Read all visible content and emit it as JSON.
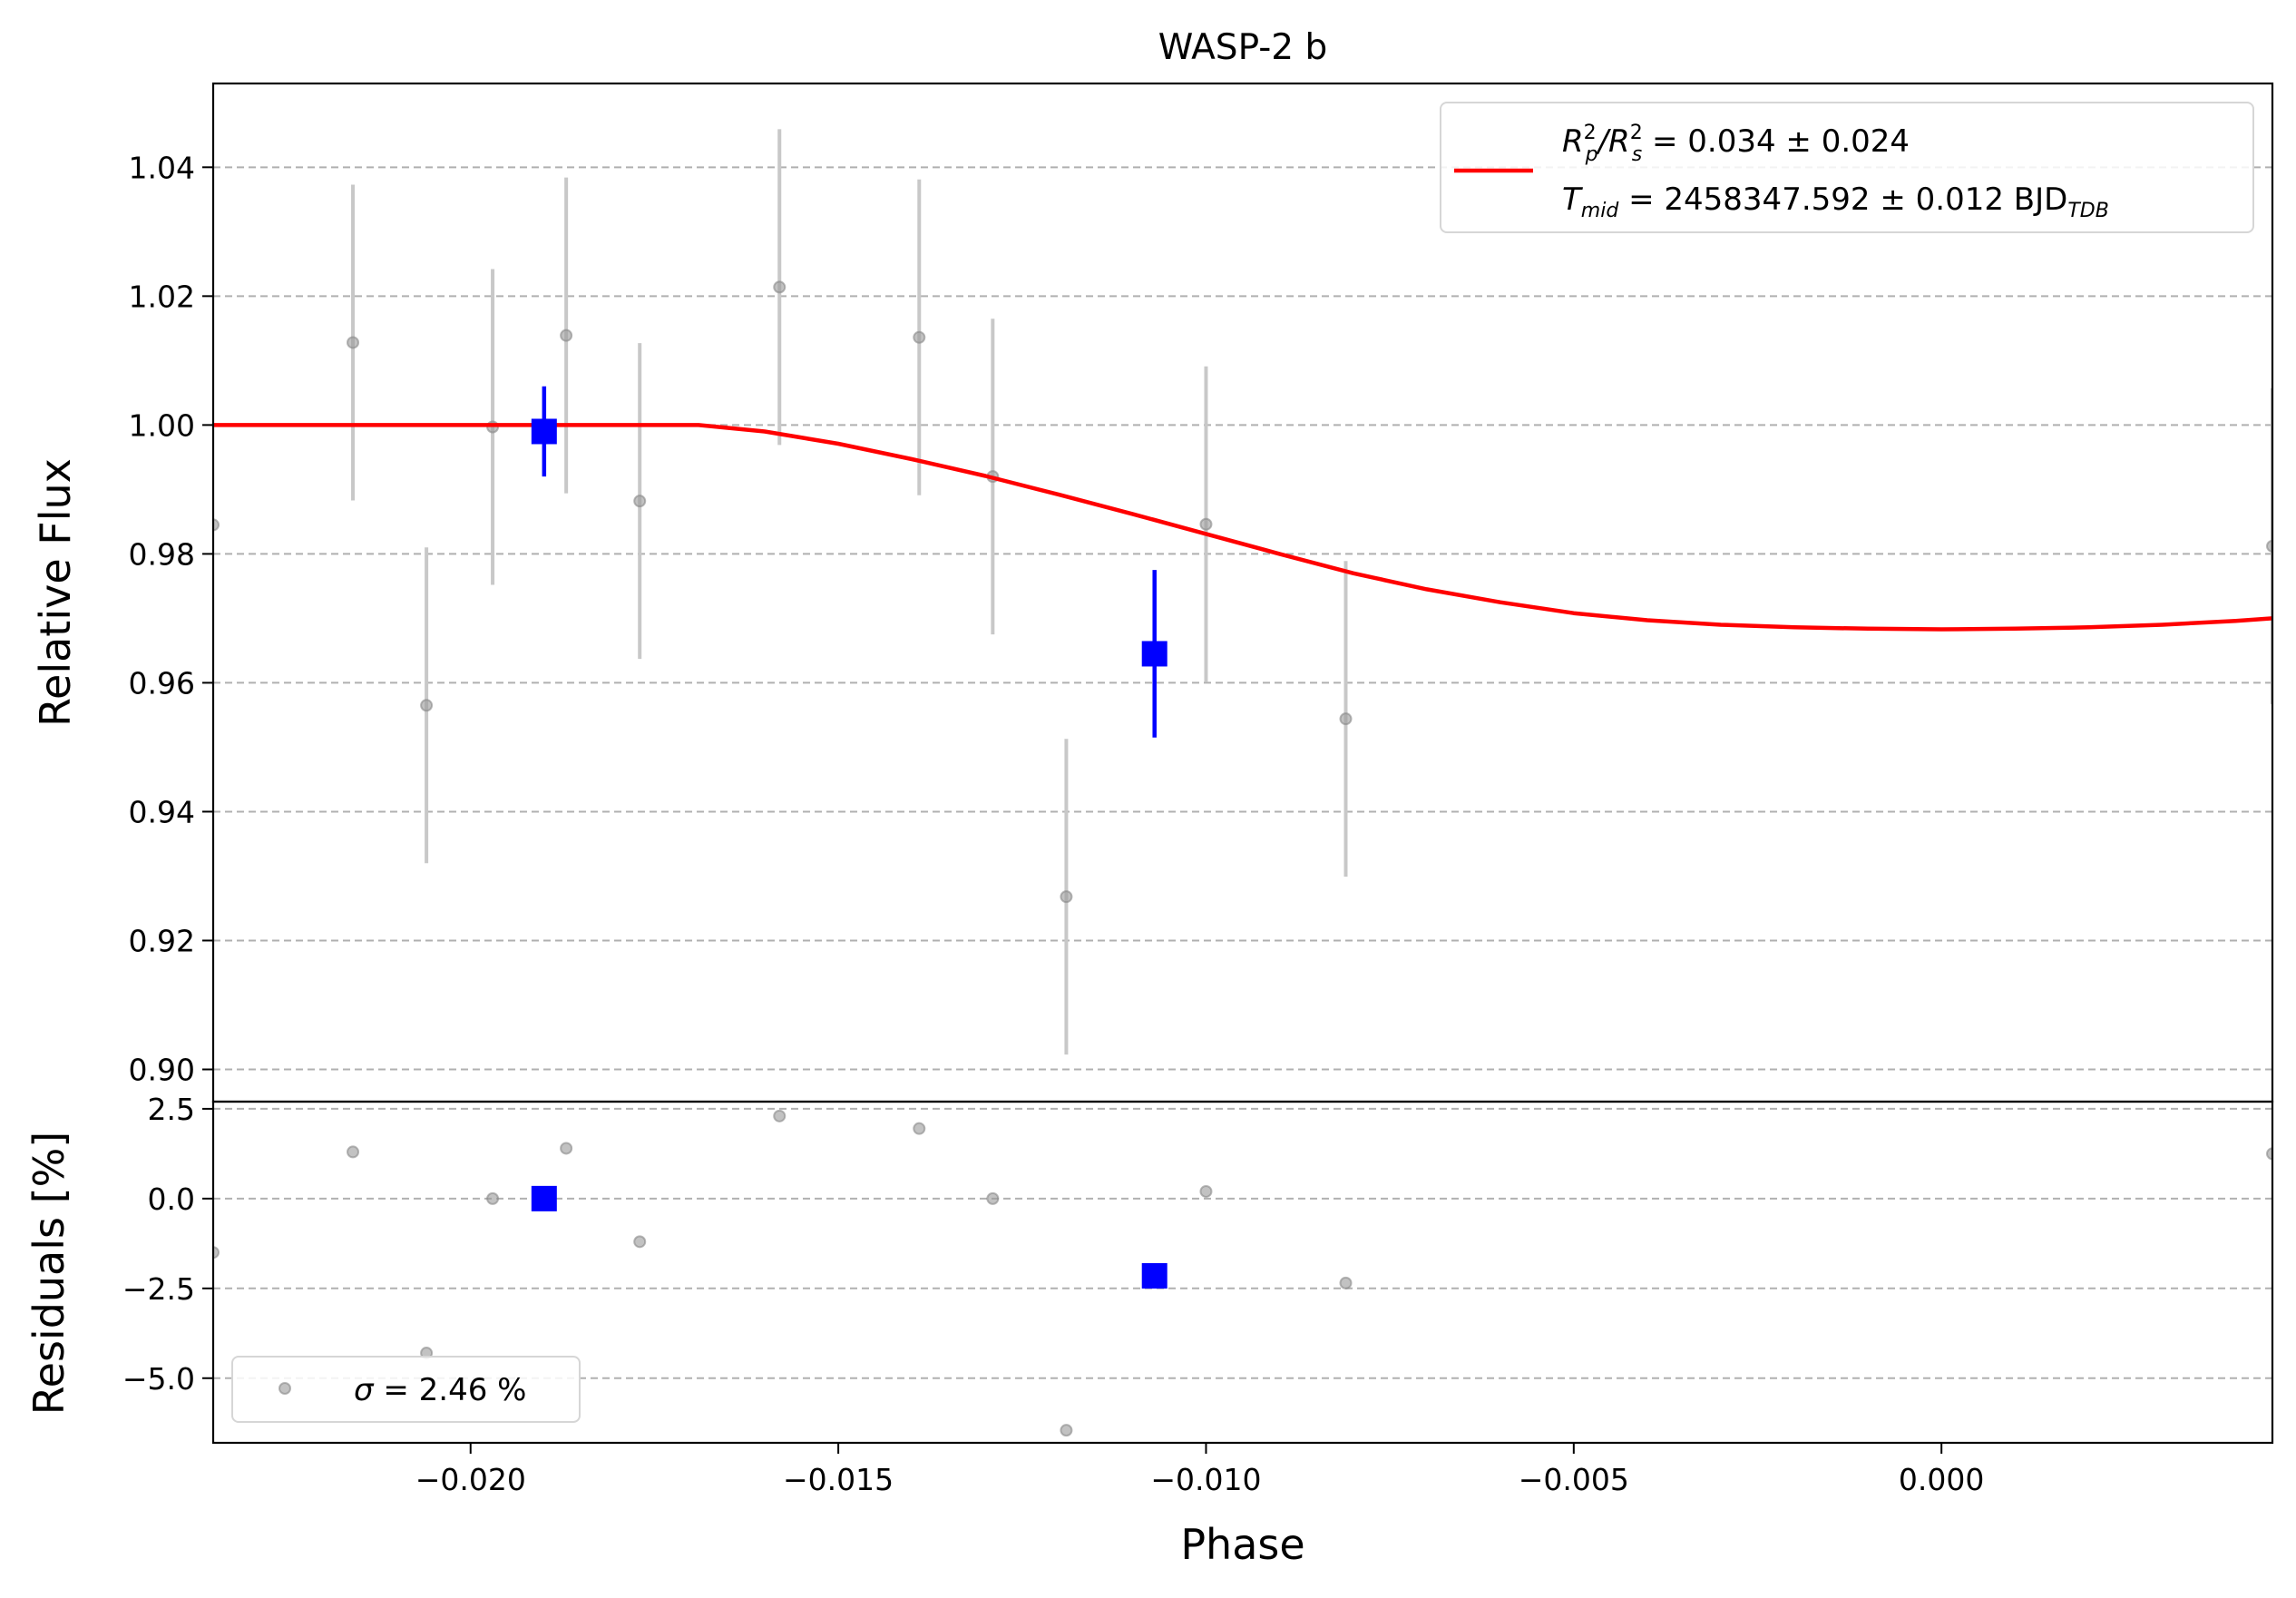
{
  "chart_data": {
    "title": "WASP-2 b",
    "type": "scatter",
    "top": {
      "ylabel": "Relative Flux",
      "ylim": [
        0.895,
        1.053
      ],
      "yticks": [
        0.9,
        0.92,
        0.94,
        0.96,
        0.98,
        1.0,
        1.02,
        1.04
      ],
      "ytick_labels": [
        "0.90",
        "0.92",
        "0.94",
        "0.96",
        "0.98",
        "1.00",
        "1.02",
        "1.04"
      ],
      "grid": "horizontal dashed",
      "raw_points": [
        {
          "x": -0.0235,
          "y": 0.9845,
          "err": 0.0
        },
        {
          "x": -0.0216,
          "y": 1.0128,
          "err": 0.0245
        },
        {
          "x": -0.0206,
          "y": 0.9565,
          "err": 0.0245
        },
        {
          "x": -0.0197,
          "y": 0.9997,
          "err": 0.0245
        },
        {
          "x": -0.0187,
          "y": 1.0139,
          "err": 0.0245
        },
        {
          "x": -0.0177,
          "y": 0.9882,
          "err": 0.0245
        },
        {
          "x": -0.0158,
          "y": 1.0214,
          "err": 0.0245
        },
        {
          "x": -0.0139,
          "y": 1.0136,
          "err": 0.0245
        },
        {
          "x": -0.0129,
          "y": 0.992,
          "err": 0.0245
        },
        {
          "x": -0.0119,
          "y": 0.9268,
          "err": 0.0245
        },
        {
          "x": -0.01,
          "y": 0.9846,
          "err": 0.0245
        },
        {
          "x": -0.0081,
          "y": 0.9544,
          "err": 0.0245
        },
        {
          "x": 0.0045,
          "y": 0.9812,
          "err": 0.0245
        }
      ],
      "binned_points": [
        {
          "x": -0.019,
          "y": 0.999,
          "err": 0.007
        },
        {
          "x": -0.0107,
          "y": 0.9645,
          "err": 0.013
        }
      ],
      "model": {
        "name": "transit model",
        "color": "#ff0000",
        "x": [
          -0.0235,
          -0.0169,
          -0.016,
          -0.015,
          -0.014,
          -0.013,
          -0.012,
          -0.011,
          -0.01,
          -0.009,
          -0.008,
          -0.007,
          -0.006,
          -0.005,
          -0.004,
          -0.003,
          -0.002,
          -0.001,
          0.0,
          0.001,
          0.002,
          0.003,
          0.004,
          0.0045
        ],
        "y": [
          1.0,
          1.0,
          0.999,
          0.9971,
          0.9947,
          0.9921,
          0.9892,
          0.9862,
          0.9831,
          0.98,
          0.977,
          0.9745,
          0.9725,
          0.9708,
          0.9697,
          0.969,
          0.9686,
          0.9684,
          0.9683,
          0.9684,
          0.9686,
          0.969,
          0.9696,
          0.97
        ]
      }
    },
    "bottom": {
      "ylabel": "Residuals [%]",
      "ylim": [
        -6.8,
        2.7
      ],
      "yticks": [
        2.5,
        0.0,
        -2.5,
        -5.0
      ],
      "ytick_labels": [
        "2.5",
        "0.0",
        "−2.5",
        "−5.0"
      ],
      "grid": "horizontal dashed",
      "raw_points": [
        {
          "x": -0.0235,
          "y": -1.5
        },
        {
          "x": -0.0216,
          "y": 1.3
        },
        {
          "x": -0.0206,
          "y": -4.3
        },
        {
          "x": -0.0197,
          "y": 0.0
        },
        {
          "x": -0.0187,
          "y": 1.4
        },
        {
          "x": -0.0177,
          "y": -1.2
        },
        {
          "x": -0.0158,
          "y": 2.3
        },
        {
          "x": -0.0139,
          "y": 1.95
        },
        {
          "x": -0.0129,
          "y": 0.0
        },
        {
          "x": -0.0119,
          "y": -6.45
        },
        {
          "x": -0.01,
          "y": 0.2
        },
        {
          "x": -0.0081,
          "y": -2.35
        },
        {
          "x": 0.0045,
          "y": 1.25
        }
      ],
      "binned_points": [
        {
          "x": -0.019,
          "y": 0.0
        },
        {
          "x": -0.0107,
          "y": -2.15
        }
      ]
    },
    "xlabel": "Phase",
    "xlim": [
      -0.0235,
      0.0045
    ],
    "xticks": [
      -0.02,
      -0.015,
      -0.01,
      -0.005,
      0.0
    ],
    "xtick_labels": [
      "−0.020",
      "−0.015",
      "−0.010",
      "−0.005",
      "0.000"
    ],
    "legend_top": {
      "placement": "top-right",
      "line1_base": "R",
      "line1_sub1": "p",
      "line1_sup1": "2",
      "line1_slash": "/R",
      "line1_sub2": "s",
      "line1_sup2": "2",
      "line1_value": " = 0.034 ± 0.024",
      "line2_base": "T",
      "line2_sub": "mid",
      "line2_value": " = 2458347.592 ± 0.012 BJD",
      "line2_unit_sub": "TDB"
    },
    "legend_bottom": {
      "placement": "bottom-left",
      "sigma_symbol": "σ",
      "text": " = 2.46 %"
    },
    "colors": {
      "raw": "#999999",
      "raw_err": "#c8c8c8",
      "binned": "#0000ff",
      "grid": "#b0b0b0"
    }
  }
}
